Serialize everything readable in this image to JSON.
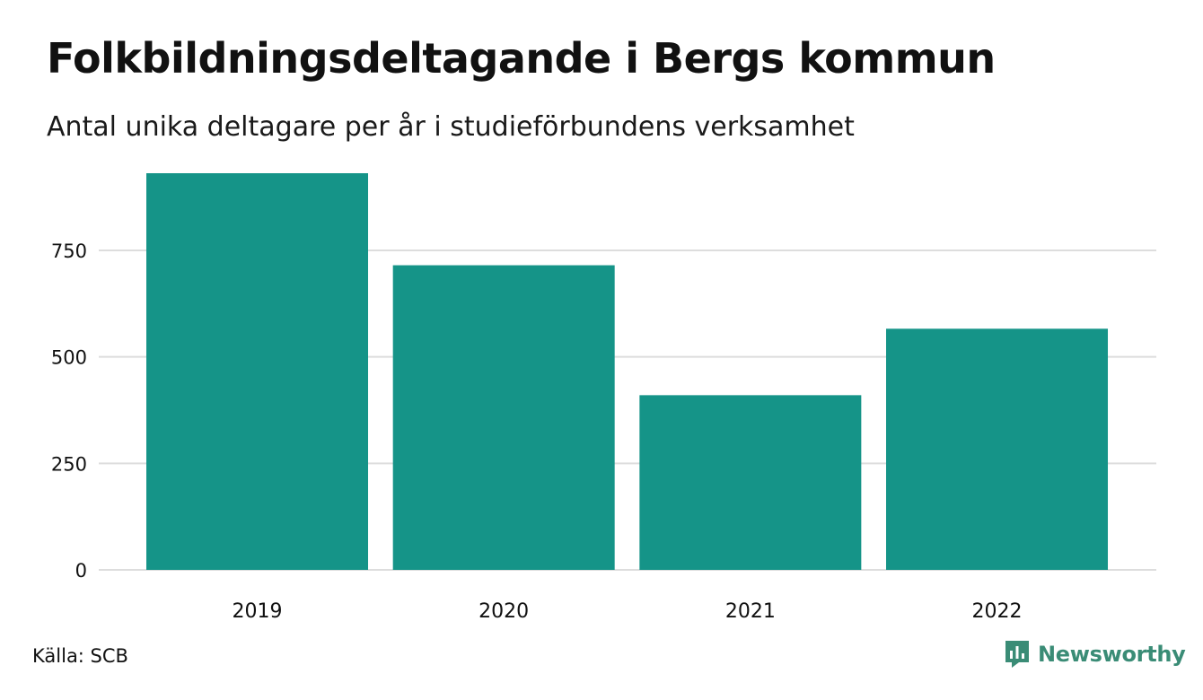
{
  "title": "Folkbildningsdeltagande i Bergs kommun",
  "subtitle": "Antal unika deltagare per år i studieförbundens verksamhet",
  "source": "Källa: SCB",
  "brand": "Newsworthy",
  "colors": {
    "bar": "#159488",
    "grid": "#dddddd",
    "brand": "#3a8c76"
  },
  "chart_data": {
    "type": "bar",
    "categories": [
      "2019",
      "2020",
      "2021",
      "2022"
    ],
    "values": [
      931,
      715,
      410,
      566
    ],
    "ylim": [
      0,
      950
    ],
    "yticks": [
      0,
      250,
      500,
      750
    ],
    "grid": true
  }
}
